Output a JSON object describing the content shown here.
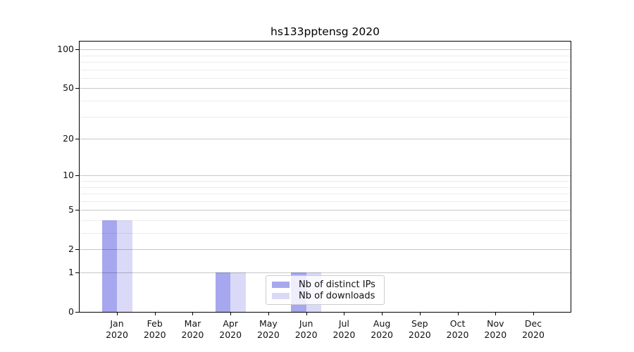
{
  "chart_data": {
    "type": "bar",
    "title": "hs133pptensg 2020",
    "categories": [
      "Jan 2020",
      "Feb 2020",
      "Mar 2020",
      "Apr 2020",
      "May 2020",
      "Jun 2020",
      "Jul 2020",
      "Aug 2020",
      "Sep 2020",
      "Oct 2020",
      "Nov 2020",
      "Dec 2020"
    ],
    "months": [
      "Jan",
      "Feb",
      "Mar",
      "Apr",
      "May",
      "Jun",
      "Jul",
      "Aug",
      "Sep",
      "Oct",
      "Nov",
      "Dec"
    ],
    "year": "2020",
    "series": [
      {
        "name": "Nb of distinct IPs",
        "color": "#a7a7ef",
        "values": [
          4,
          0,
          0,
          1,
          0,
          1,
          0,
          0,
          0,
          0,
          0,
          0
        ]
      },
      {
        "name": "Nb of downloads",
        "color": "#dadaf8",
        "values": [
          4,
          0,
          0,
          1,
          0,
          1,
          0,
          0,
          0,
          0,
          0,
          0
        ]
      }
    ],
    "xlabel": "",
    "ylabel": "",
    "yscale": "log1p",
    "ylim": [
      0,
      115
    ],
    "y_major_ticks": [
      100,
      50,
      20,
      10,
      5,
      2,
      1,
      0
    ],
    "y_minor_ticks": [
      90,
      80,
      70,
      60,
      40,
      30,
      9,
      8,
      7,
      6,
      4,
      3
    ],
    "grid": "both",
    "legend": {
      "position": "inside-bottom-center",
      "entries": [
        "Nb of distinct IPs",
        "Nb of downloads"
      ]
    }
  },
  "colors": {
    "bar_distinct_ips": "#a7a7ef",
    "bar_downloads": "#dadaf8",
    "grid_major": "#c7c7c7",
    "grid_minor": "#ececec",
    "axis_border": "#000000",
    "legend_border": "#cccccc",
    "background": "#ffffff"
  }
}
